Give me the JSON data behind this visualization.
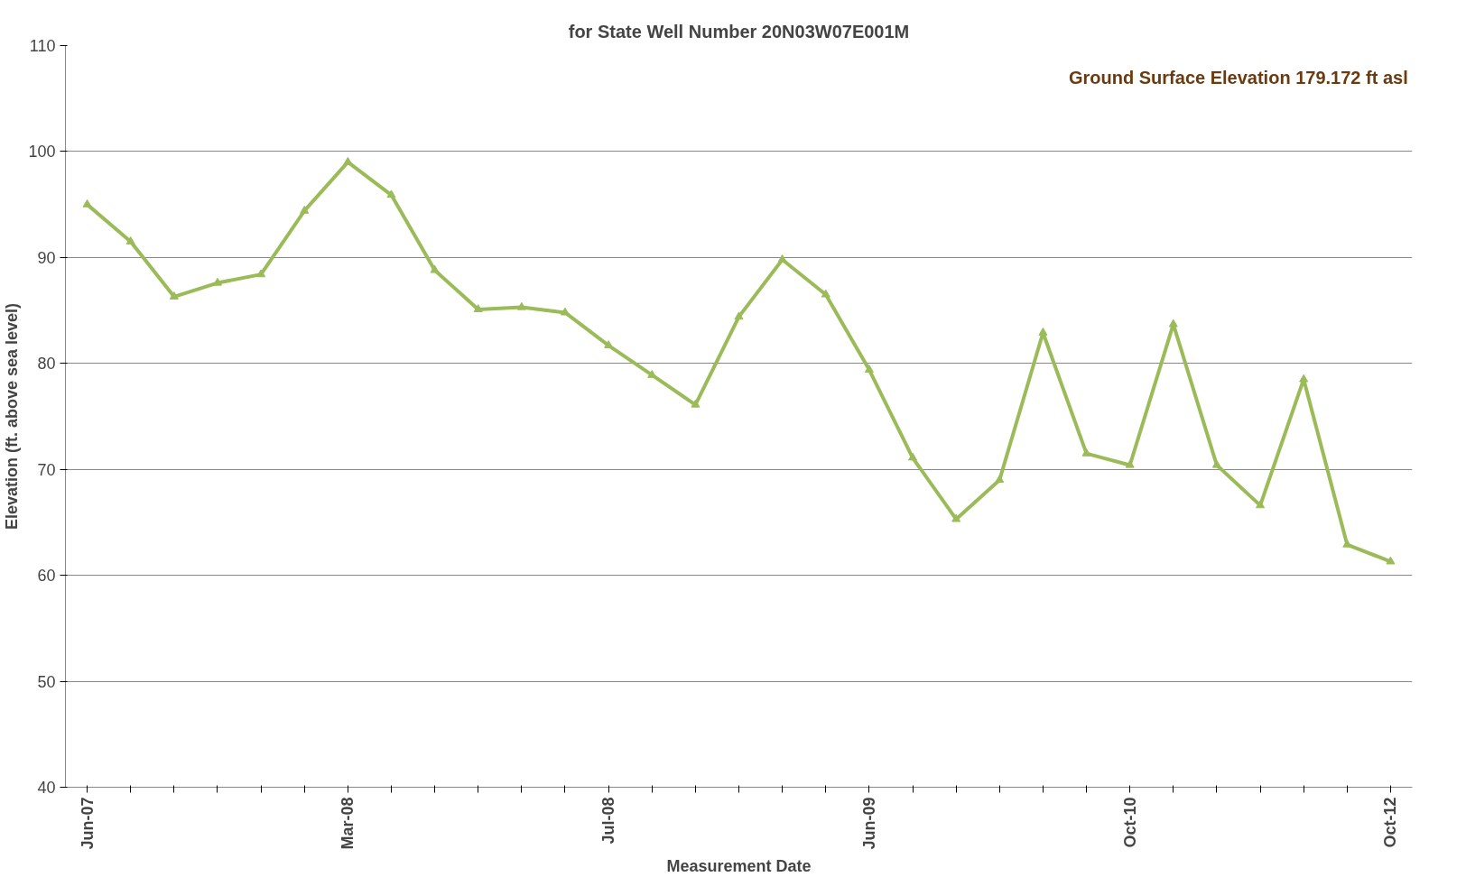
{
  "chart_data": {
    "type": "line",
    "title": "for State Well Number 20N03W07E001M",
    "xlabel": "Measurement Date",
    "ylabel": "Elevation (ft. above sea level)",
    "categories": [
      "Jun-07",
      null,
      null,
      null,
      null,
      null,
      "Mar-08",
      null,
      null,
      null,
      null,
      null,
      "Jul-08",
      null,
      null,
      null,
      null,
      null,
      "Jun-09",
      null,
      null,
      null,
      null,
      null,
      "Oct-10",
      null,
      null,
      null,
      null,
      null,
      "Oct-12"
    ],
    "series": [
      {
        "color": "#9bbb59",
        "values": [
          95,
          91.5,
          86.3,
          87.6,
          88.4,
          94.4,
          99.0,
          95.9,
          88.8,
          85.1,
          85.3,
          84.8,
          81.7,
          78.9,
          76.1,
          84.4,
          89.8,
          86.5,
          79.4,
          71.1,
          65.3,
          69.0,
          82.9,
          71.5,
          70.4,
          83.7,
          70.4,
          66.6,
          78.5,
          62.9,
          61.3
        ]
      }
    ],
    "ylim": [
      40,
      110
    ],
    "yticks": [
      40,
      50,
      60,
      70,
      80,
      90,
      100,
      110
    ],
    "grid": "y",
    "marker": "triangle",
    "line_style": "solid",
    "annotations": [
      "Ground Surface Elevation 179.172 ft asl"
    ]
  }
}
